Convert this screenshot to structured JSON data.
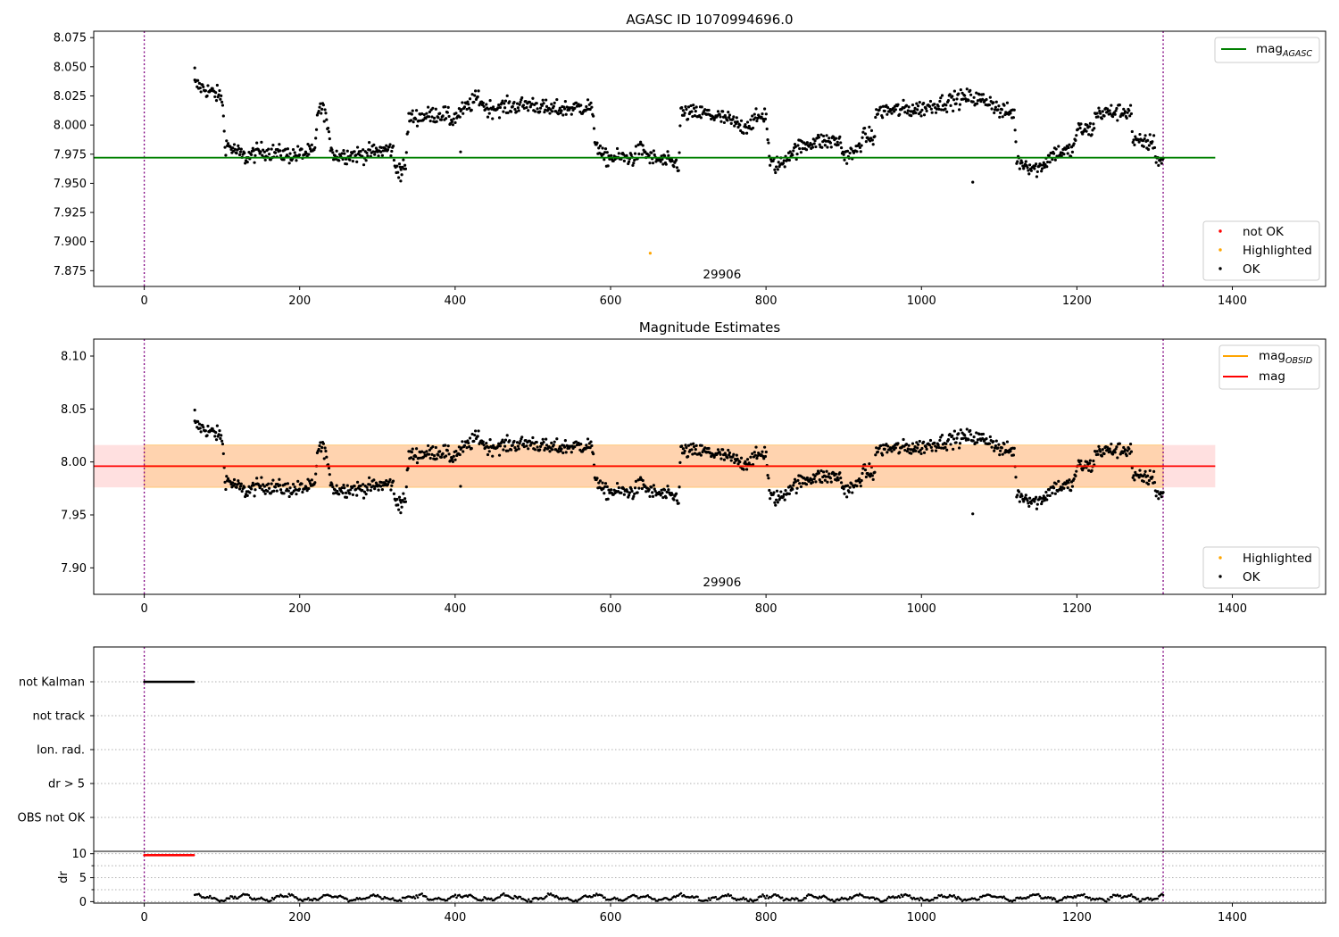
{
  "chart_data": [
    {
      "type": "scatter",
      "title": "AGASC ID 1070994696.0",
      "xlim": [
        -65,
        1520
      ],
      "ylim": [
        7.8615,
        8.0805
      ],
      "x_ticks": [
        0,
        200,
        400,
        600,
        800,
        1000,
        1200,
        1400
      ],
      "y_ticks": [
        7.875,
        7.9,
        7.925,
        7.95,
        7.975,
        8.0,
        8.025,
        8.05,
        8.075
      ],
      "y_tick_labels": [
        "7.875",
        "7.900",
        "7.925",
        "7.950",
        "7.975",
        "8.000",
        "8.025",
        "8.050",
        "8.075"
      ],
      "mag_agasc": 7.972,
      "line_x_range": [
        -65,
        1378
      ],
      "obs_boundaries": [
        0,
        1311
      ],
      "obs_label": "29906",
      "obs_label_x": 655,
      "highlighted_points": [
        {
          "x": 651,
          "y": 7.89
        }
      ],
      "line_legend": [
        {
          "label": "mag",
          "subscript": "AGASC",
          "color": "#008000"
        }
      ],
      "point_legend": [
        {
          "label": "not OK",
          "color": "#ff0000"
        },
        {
          "label": "Highlighted",
          "color": "#ffa500"
        },
        {
          "label": "OK",
          "color": "#000000"
        }
      ]
    },
    {
      "type": "scatter",
      "title": "Magnitude Estimates",
      "xlim": [
        -65,
        1520
      ],
      "ylim": [
        7.875,
        8.116
      ],
      "x_ticks": [
        0,
        200,
        400,
        600,
        800,
        1000,
        1200,
        1400
      ],
      "y_ticks": [
        7.9,
        7.95,
        8.0,
        8.05,
        8.1
      ],
      "y_tick_labels": [
        "7.90",
        "7.95",
        "8.00",
        "8.05",
        "8.10"
      ],
      "mag": 7.996,
      "mag_band": [
        7.976,
        8.016
      ],
      "mag_obsid_band": [
        7.976,
        8.016
      ],
      "line_x_range": [
        -65,
        1378
      ],
      "obs_boundaries": [
        0,
        1311
      ],
      "obs_label": "29906",
      "obs_label_x": 655,
      "line_legend": [
        {
          "label": "mag",
          "subscript": "OBSID",
          "color": "#ffa500"
        },
        {
          "label": "mag",
          "subscript": "",
          "color": "#ff0000"
        }
      ],
      "point_legend": [
        {
          "label": "Highlighted",
          "color": "#ffa500"
        },
        {
          "label": "OK",
          "color": "#000000"
        }
      ]
    },
    {
      "type": "scatter",
      "title": "",
      "xlim": [
        -65,
        1520
      ],
      "x_ticks": [
        0,
        200,
        400,
        600,
        800,
        1000,
        1200,
        1400
      ],
      "flag_rows": [
        "not Kalman",
        "not track",
        "Ion. rad.",
        "dr > 5",
        "OBS not OK"
      ],
      "flag_points": [
        {
          "row": "not Kalman",
          "x_range": [
            0,
            64
          ]
        }
      ],
      "obs_boundaries": [
        0,
        1311
      ]
    },
    {
      "type": "scatter",
      "title": "",
      "ylabel": "dr",
      "xlim": [
        -65,
        1520
      ],
      "ylim": [
        -0.3,
        10.5
      ],
      "x_ticks": [
        0,
        200,
        400,
        600,
        800,
        1000,
        1200,
        1400
      ],
      "y_ticks": [
        0,
        5,
        10
      ],
      "y_tick_labels": [
        "0",
        "5",
        "10"
      ],
      "red_points": {
        "x_range": [
          0,
          64
        ],
        "y": 9.7
      },
      "obs_boundaries": [
        0,
        1311
      ]
    }
  ],
  "series_model": {
    "x_start": 65,
    "x_end": 1311,
    "n_points": 1250,
    "segments": [
      [
        65,
        8.035
      ],
      [
        100,
        8.024
      ],
      [
        104,
        7.984
      ],
      [
        130,
        7.972
      ],
      [
        150,
        7.978
      ],
      [
        190,
        7.974
      ],
      [
        220,
        7.977
      ],
      [
        223,
        8.014
      ],
      [
        233,
        8.012
      ],
      [
        237,
        7.989
      ],
      [
        245,
        7.974
      ],
      [
        280,
        7.975
      ],
      [
        320,
        7.98
      ],
      [
        322,
        7.964
      ],
      [
        336,
        7.962
      ],
      [
        340,
        8.006
      ],
      [
        385,
        8.01
      ],
      [
        395,
        8.004
      ],
      [
        420,
        8.018
      ],
      [
        430,
        8.024
      ],
      [
        440,
        8.014
      ],
      [
        500,
        8.018
      ],
      [
        520,
        8.013
      ],
      [
        575,
        8.016
      ],
      [
        580,
        7.988
      ],
      [
        590,
        7.972
      ],
      [
        630,
        7.972
      ],
      [
        640,
        7.98
      ],
      [
        650,
        7.972
      ],
      [
        688,
        7.966
      ],
      [
        690,
        8.01
      ],
      [
        720,
        8.01
      ],
      [
        750,
        8.005
      ],
      [
        770,
        7.998
      ],
      [
        800,
        8.01
      ],
      [
        805,
        7.966
      ],
      [
        820,
        7.966
      ],
      [
        830,
        7.976
      ],
      [
        860,
        7.986
      ],
      [
        895,
        7.986
      ],
      [
        900,
        7.974
      ],
      [
        915,
        7.976
      ],
      [
        925,
        7.99
      ],
      [
        940,
        7.99
      ],
      [
        942,
        8.012
      ],
      [
        1000,
        8.014
      ],
      [
        1020,
        8.018
      ],
      [
        1060,
        8.024
      ],
      [
        1090,
        8.02
      ],
      [
        1100,
        8.012
      ],
      [
        1120,
        8.01
      ],
      [
        1122,
        7.97
      ],
      [
        1150,
        7.962
      ],
      [
        1170,
        7.976
      ],
      [
        1195,
        7.978
      ],
      [
        1200,
        7.996
      ],
      [
        1220,
        7.996
      ],
      [
        1225,
        8.01
      ],
      [
        1270,
        8.012
      ],
      [
        1272,
        7.985
      ],
      [
        1300,
        7.985
      ],
      [
        1302,
        7.97
      ],
      [
        1311,
        7.97
      ]
    ],
    "outliers": [
      {
        "x": 1066,
        "y": 7.951
      },
      {
        "x": 407,
        "y": 7.977
      },
      {
        "x": 330,
        "y": 7.952
      },
      {
        "x": 65,
        "y": 8.049
      }
    ],
    "dr_mean": 0.8,
    "dr_max": 1.9
  }
}
